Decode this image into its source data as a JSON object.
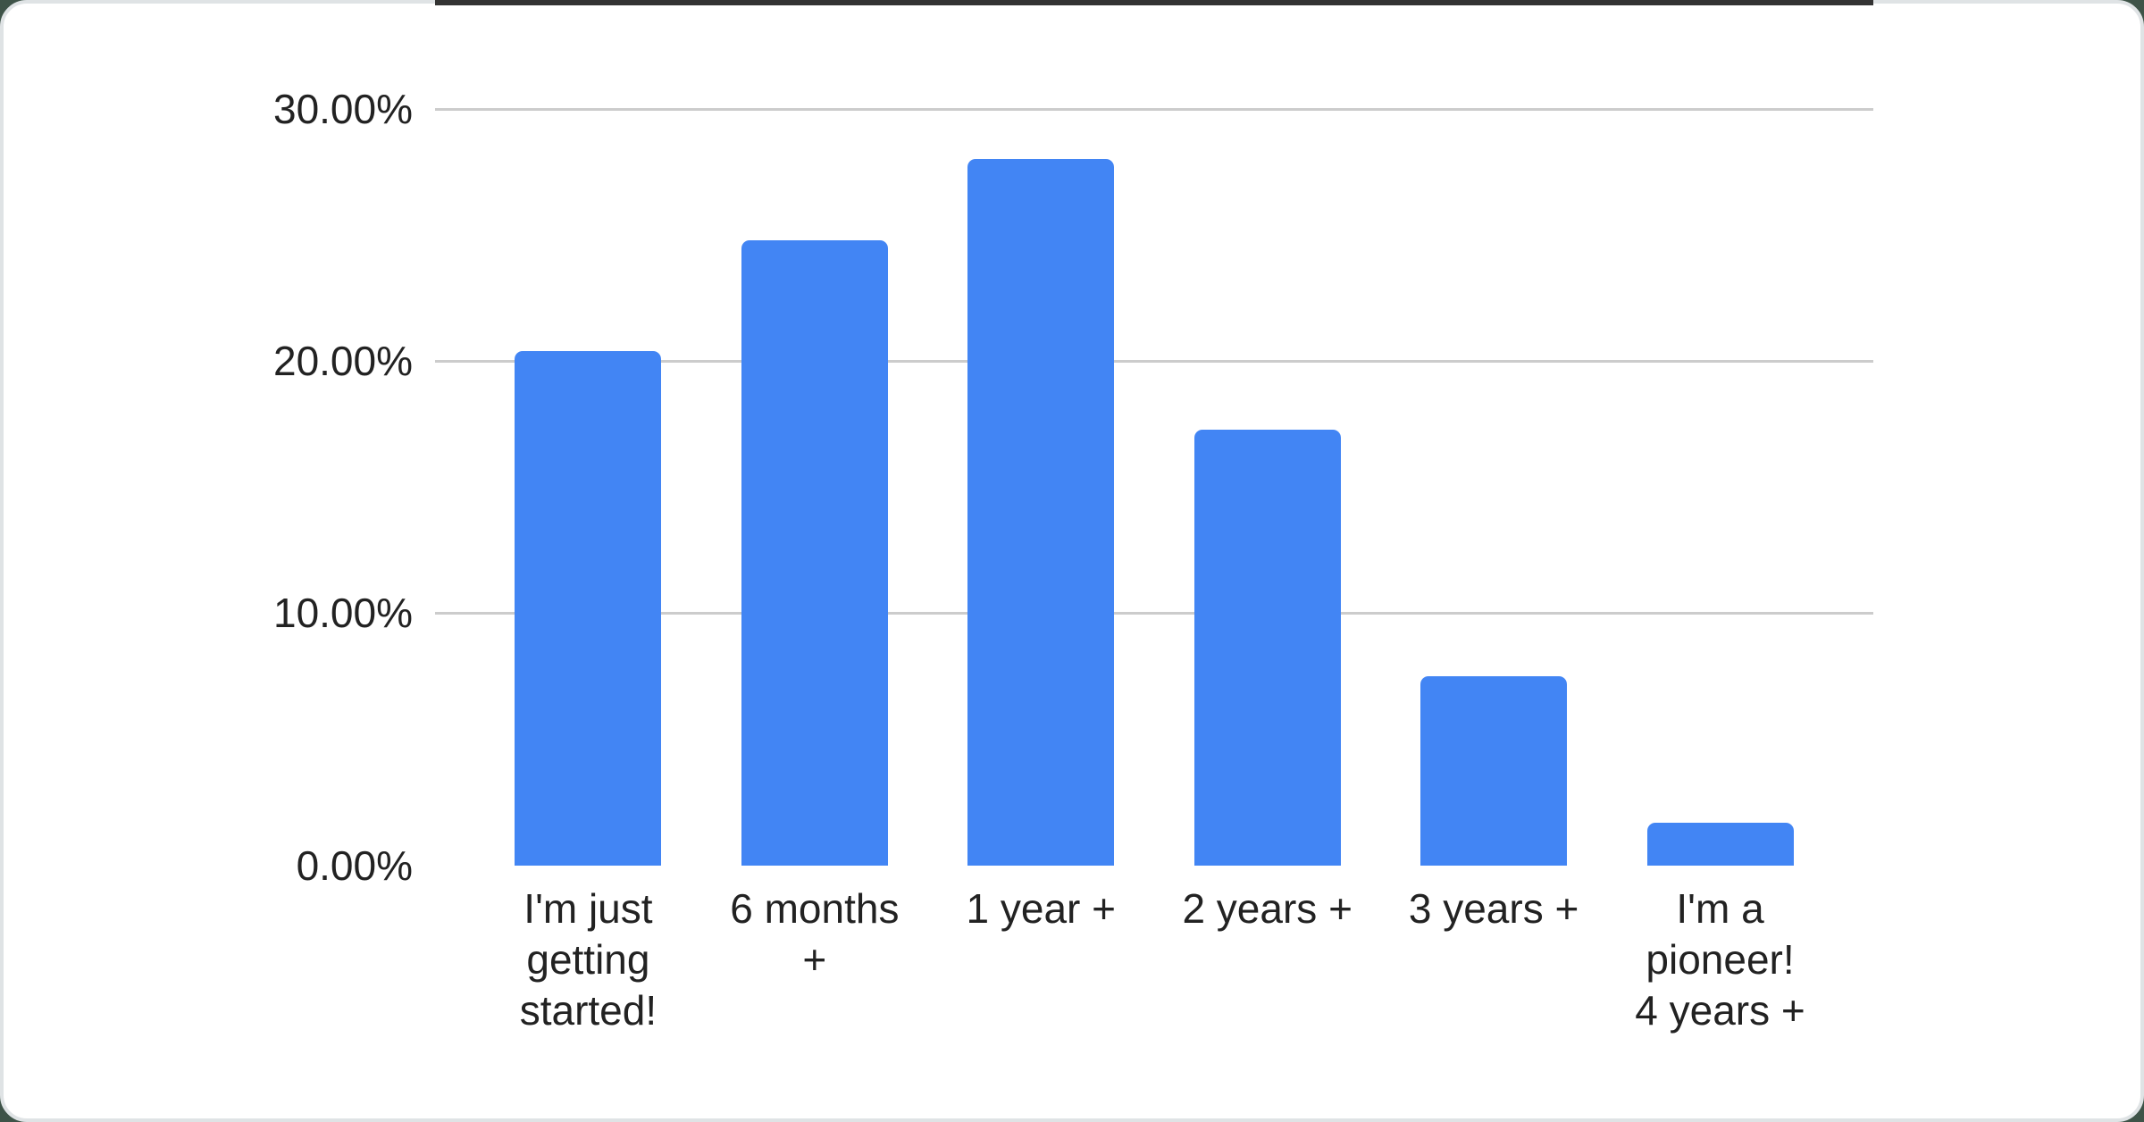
{
  "page": {
    "background_color": "#3e5348",
    "card_color": "#ffffff",
    "card_border_color": "#dfe3e5"
  },
  "chart_data": {
    "type": "bar",
    "title": "",
    "xlabel": "",
    "ylabel": "",
    "categories": [
      "I'm just getting started!",
      "6 months +",
      "1 year +",
      "2 years +",
      "3 years +",
      "I'm a pioneer! 4 years +"
    ],
    "category_lines": [
      [
        "I'm just",
        "getting",
        "started!"
      ],
      [
        "6 months",
        "+"
      ],
      [
        "1 year +"
      ],
      [
        "2 years +"
      ],
      [
        "3 years +"
      ],
      [
        "I'm a",
        "pioneer!",
        "4 years +"
      ]
    ],
    "values": [
      20.4,
      24.8,
      28.0,
      17.3,
      7.5,
      1.7
    ],
    "unit": "%",
    "ylim": [
      0,
      30
    ],
    "y_ticks": [
      {
        "value": 0,
        "label": "0.00%"
      },
      {
        "value": 10,
        "label": "10.00%"
      },
      {
        "value": 20,
        "label": "20.00%"
      },
      {
        "value": 30,
        "label": "30.00%"
      }
    ],
    "grid": true,
    "legend_position": "none",
    "bar_color": "#4285f4",
    "gridline_color": "#cccccc",
    "axis_line_color": "#333333",
    "text_color": "#222222"
  }
}
